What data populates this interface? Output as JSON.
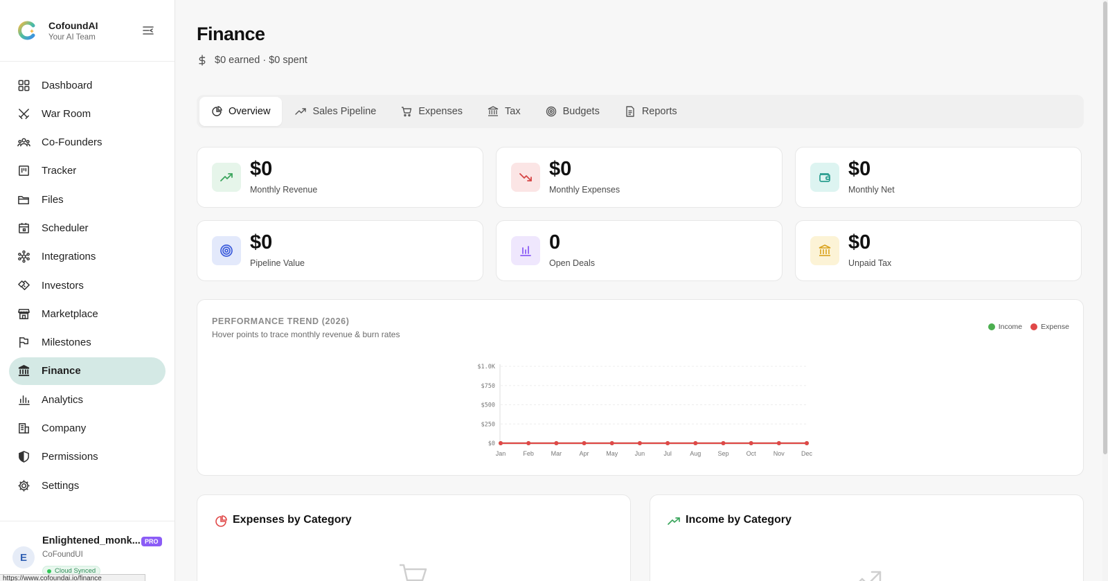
{
  "brand": {
    "name": "CofoundAI",
    "tagline": "Your AI Team"
  },
  "sidebar": {
    "items": [
      {
        "label": "Dashboard",
        "icon": "grid-icon"
      },
      {
        "label": "War Room",
        "icon": "swords-icon"
      },
      {
        "label": "Co-Founders",
        "icon": "users-icon"
      },
      {
        "label": "Tracker",
        "icon": "kanban-icon"
      },
      {
        "label": "Files",
        "icon": "folder-icon"
      },
      {
        "label": "Scheduler",
        "icon": "calendar-icon"
      },
      {
        "label": "Integrations",
        "icon": "network-icon"
      },
      {
        "label": "Investors",
        "icon": "handshake-icon"
      },
      {
        "label": "Marketplace",
        "icon": "store-icon"
      },
      {
        "label": "Milestones",
        "icon": "flag-icon"
      },
      {
        "label": "Finance",
        "icon": "bank-icon",
        "active": true
      },
      {
        "label": "Analytics",
        "icon": "bar-chart-icon"
      },
      {
        "label": "Company",
        "icon": "building-icon"
      },
      {
        "label": "Permissions",
        "icon": "shield-icon"
      },
      {
        "label": "Settings",
        "icon": "gear-icon"
      }
    ],
    "active_color": "#d4e9e5"
  },
  "user": {
    "initial": "E",
    "name": "Enlightened_monk...",
    "badge": "PRO",
    "org": "CoFoundUI",
    "sync_status": "Cloud Synced"
  },
  "status_url": "https://www.cofoundai.io/finance",
  "page": {
    "title": "Finance",
    "subtitle": "$0 earned · $0 spent"
  },
  "tabs": [
    {
      "label": "Overview",
      "icon": "pie-chart-icon",
      "active": true
    },
    {
      "label": "Sales Pipeline",
      "icon": "trending-up-icon"
    },
    {
      "label": "Expenses",
      "icon": "cart-icon"
    },
    {
      "label": "Tax",
      "icon": "bank-icon"
    },
    {
      "label": "Budgets",
      "icon": "target-icon"
    },
    {
      "label": "Reports",
      "icon": "document-icon"
    }
  ],
  "stats": [
    {
      "value": "$0",
      "label": "Monthly Revenue",
      "icon": "trending-up-icon",
      "color": "#3ba55d",
      "bg": "#e6f5ea"
    },
    {
      "value": "$0",
      "label": "Monthly Expenses",
      "icon": "trending-down-icon",
      "color": "#d64545",
      "bg": "#fbe5e5"
    },
    {
      "value": "$0",
      "label": "Monthly Net",
      "icon": "wallet-icon",
      "color": "#2a9d8f",
      "bg": "#ddf4f1"
    },
    {
      "value": "$0",
      "label": "Pipeline Value",
      "icon": "target-icon",
      "color": "#3b5bdb",
      "bg": "#e3e9fb"
    },
    {
      "value": "0",
      "label": "Open Deals",
      "icon": "bar-chart-icon",
      "color": "#8b5cf6",
      "bg": "#efe7fd"
    },
    {
      "value": "$0",
      "label": "Unpaid Tax",
      "icon": "bank-icon",
      "color": "#d9a21b",
      "bg": "#fcf3d6"
    }
  ],
  "trend": {
    "title": "PERFORMANCE TREND (2026)",
    "subtitle": "Hover points to trace monthly revenue & burn rates",
    "legend": [
      {
        "label": "Income",
        "color": "#4caf50"
      },
      {
        "label": "Expense",
        "color": "#e04848"
      }
    ]
  },
  "chart_data": {
    "type": "line",
    "x": [
      "Jan",
      "Feb",
      "Mar",
      "Apr",
      "May",
      "Jun",
      "Jul",
      "Aug",
      "Sep",
      "Oct",
      "Nov",
      "Dec"
    ],
    "series": [
      {
        "name": "Income",
        "values": [
          0,
          0,
          0,
          0,
          0,
          0,
          0,
          0,
          0,
          0,
          0,
          0
        ],
        "color": "#4caf50"
      },
      {
        "name": "Expense",
        "values": [
          0,
          0,
          0,
          0,
          0,
          0,
          0,
          0,
          0,
          0,
          0,
          0
        ],
        "color": "#e04848"
      }
    ],
    "ylim": [
      0,
      1000
    ],
    "yticks": [
      0,
      250,
      500,
      750,
      1000
    ],
    "ytick_labels": [
      "$0",
      "$250",
      "$500",
      "$750",
      "$1.0K"
    ],
    "grid": true,
    "legend": "top-right"
  },
  "cards": {
    "expenses_title": "Expenses by Category",
    "income_title": "Income by Category"
  }
}
